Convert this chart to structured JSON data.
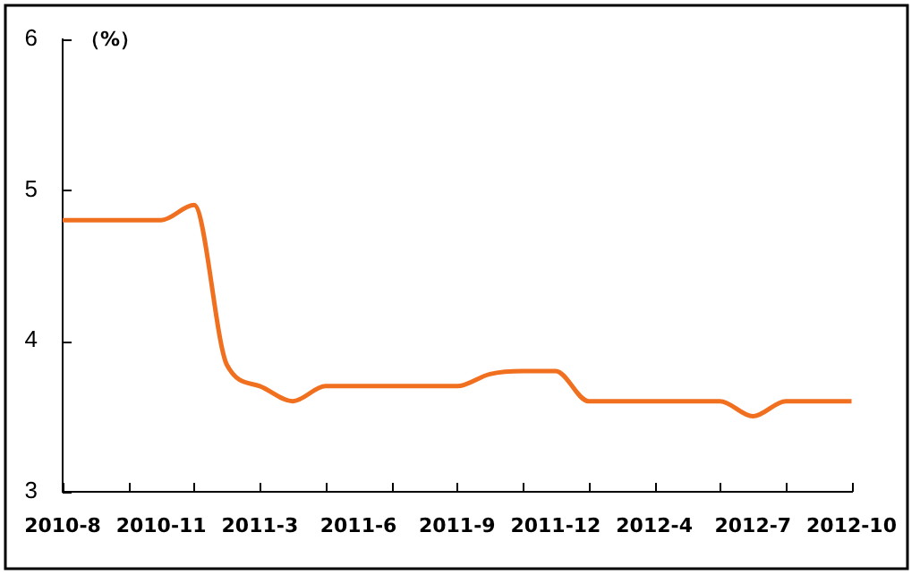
{
  "chart_data": {
    "type": "line",
    "ylabel": "（%）",
    "categories": [
      "2010-8",
      null,
      null,
      "2010-11",
      null,
      null,
      "2011-3",
      null,
      null,
      "2011-6",
      null,
      null,
      "2011-9",
      null,
      null,
      "2011-12",
      null,
      null,
      "2012-4",
      null,
      null,
      "2012-7",
      null,
      null,
      "2012-10"
    ],
    "series": [
      {
        "color": "#f07020",
        "values": [
          4.8,
          4.8,
          4.8,
          4.8,
          4.9,
          3.84,
          3.7,
          3.6,
          3.7,
          3.7,
          3.7,
          3.7,
          3.7,
          3.78,
          3.8,
          3.8,
          3.6,
          3.6,
          3.6,
          3.6,
          3.6,
          3.5,
          3.6,
          3.6,
          3.6
        ]
      }
    ],
    "ylim": [
      3,
      6
    ],
    "yticks": [
      3,
      4,
      5,
      6
    ],
    "grid": false,
    "legend": false,
    "marker": "none",
    "line_style": "solid"
  }
}
